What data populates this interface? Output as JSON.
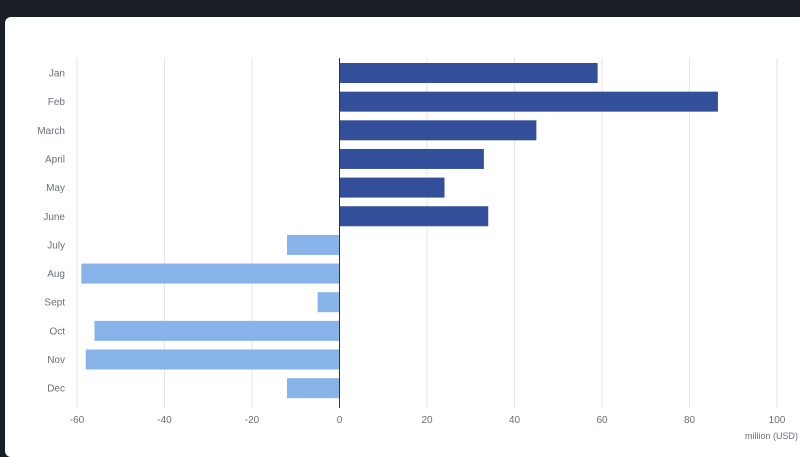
{
  "chart_data": {
    "type": "bar",
    "orientation": "horizontal",
    "categories": [
      "Jan",
      "Feb",
      "March",
      "April",
      "May",
      "June",
      "July",
      "Aug",
      "Sept",
      "Oct",
      "Nov",
      "Dec"
    ],
    "values": [
      59,
      86.5,
      45,
      33,
      24,
      34,
      -12,
      -59,
      -5,
      -56,
      -58,
      -12
    ],
    "xlabel": "million (USD)",
    "ylabel": "",
    "xlim": [
      -60,
      100
    ],
    "xticks": [
      "-60",
      "-40",
      "-20",
      "0",
      "20",
      "40",
      "60",
      "80",
      "100"
    ],
    "grid": true,
    "colors": {
      "positive": "#344f99",
      "negative": "#88b3e8",
      "grid": "#e6e6e6",
      "axis": "#333333"
    }
  }
}
